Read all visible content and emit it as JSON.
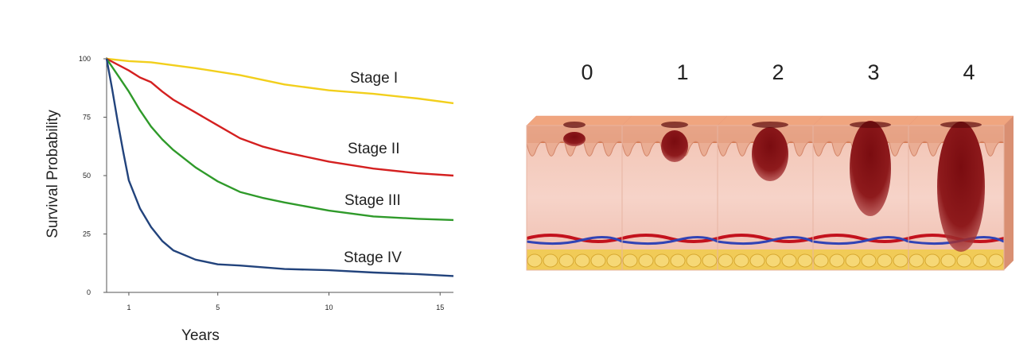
{
  "chart_data": {
    "type": "line",
    "xlabel": "Years",
    "ylabel": "Survival Probability",
    "xlim": [
      0,
      15.6
    ],
    "ylim": [
      0,
      100
    ],
    "x_ticks": [
      1,
      5,
      10,
      15
    ],
    "y_ticks": [
      0,
      25,
      50,
      75,
      100
    ],
    "grid": false,
    "series": [
      {
        "name": "Stage I",
        "color": "#f2cf1c",
        "x": [
          0,
          1,
          2,
          4,
          6,
          8,
          10,
          12,
          14,
          15.6
        ],
        "y": [
          100,
          99,
          98.5,
          96,
          93,
          89,
          86.5,
          85,
          83,
          81
        ]
      },
      {
        "name": "Stage II",
        "color": "#d42020",
        "x": [
          0,
          1,
          1.5,
          2,
          2.5,
          3,
          4,
          5,
          6,
          7,
          8,
          10,
          12,
          14,
          15.6
        ],
        "y": [
          100,
          95,
          92,
          90,
          86,
          82.5,
          77,
          71.5,
          66,
          62.5,
          60,
          56,
          53,
          51,
          50
        ]
      },
      {
        "name": "Stage III",
        "color": "#2f9a2a",
        "x": [
          0,
          0.5,
          1,
          1.5,
          2,
          2.5,
          3,
          4,
          5,
          6,
          7,
          8,
          10,
          12,
          14,
          15.6
        ],
        "y": [
          100,
          93,
          86,
          78,
          71,
          65.5,
          61,
          53.5,
          47.5,
          43,
          40.5,
          38.5,
          35,
          32.5,
          31.5,
          31
        ]
      },
      {
        "name": "Stage IV",
        "color": "#22437c",
        "x": [
          0,
          0.25,
          0.5,
          0.75,
          1,
          1.5,
          2,
          2.5,
          3,
          4,
          5,
          6,
          8,
          10,
          12,
          14,
          15.6
        ],
        "y": [
          100,
          87,
          73,
          60,
          48,
          36,
          28,
          22,
          18,
          14,
          12,
          11.5,
          10,
          9.5,
          8.5,
          7.8,
          7
        ]
      }
    ]
  },
  "stages": {
    "labels": [
      "0",
      "1",
      "2",
      "3",
      "4"
    ]
  }
}
